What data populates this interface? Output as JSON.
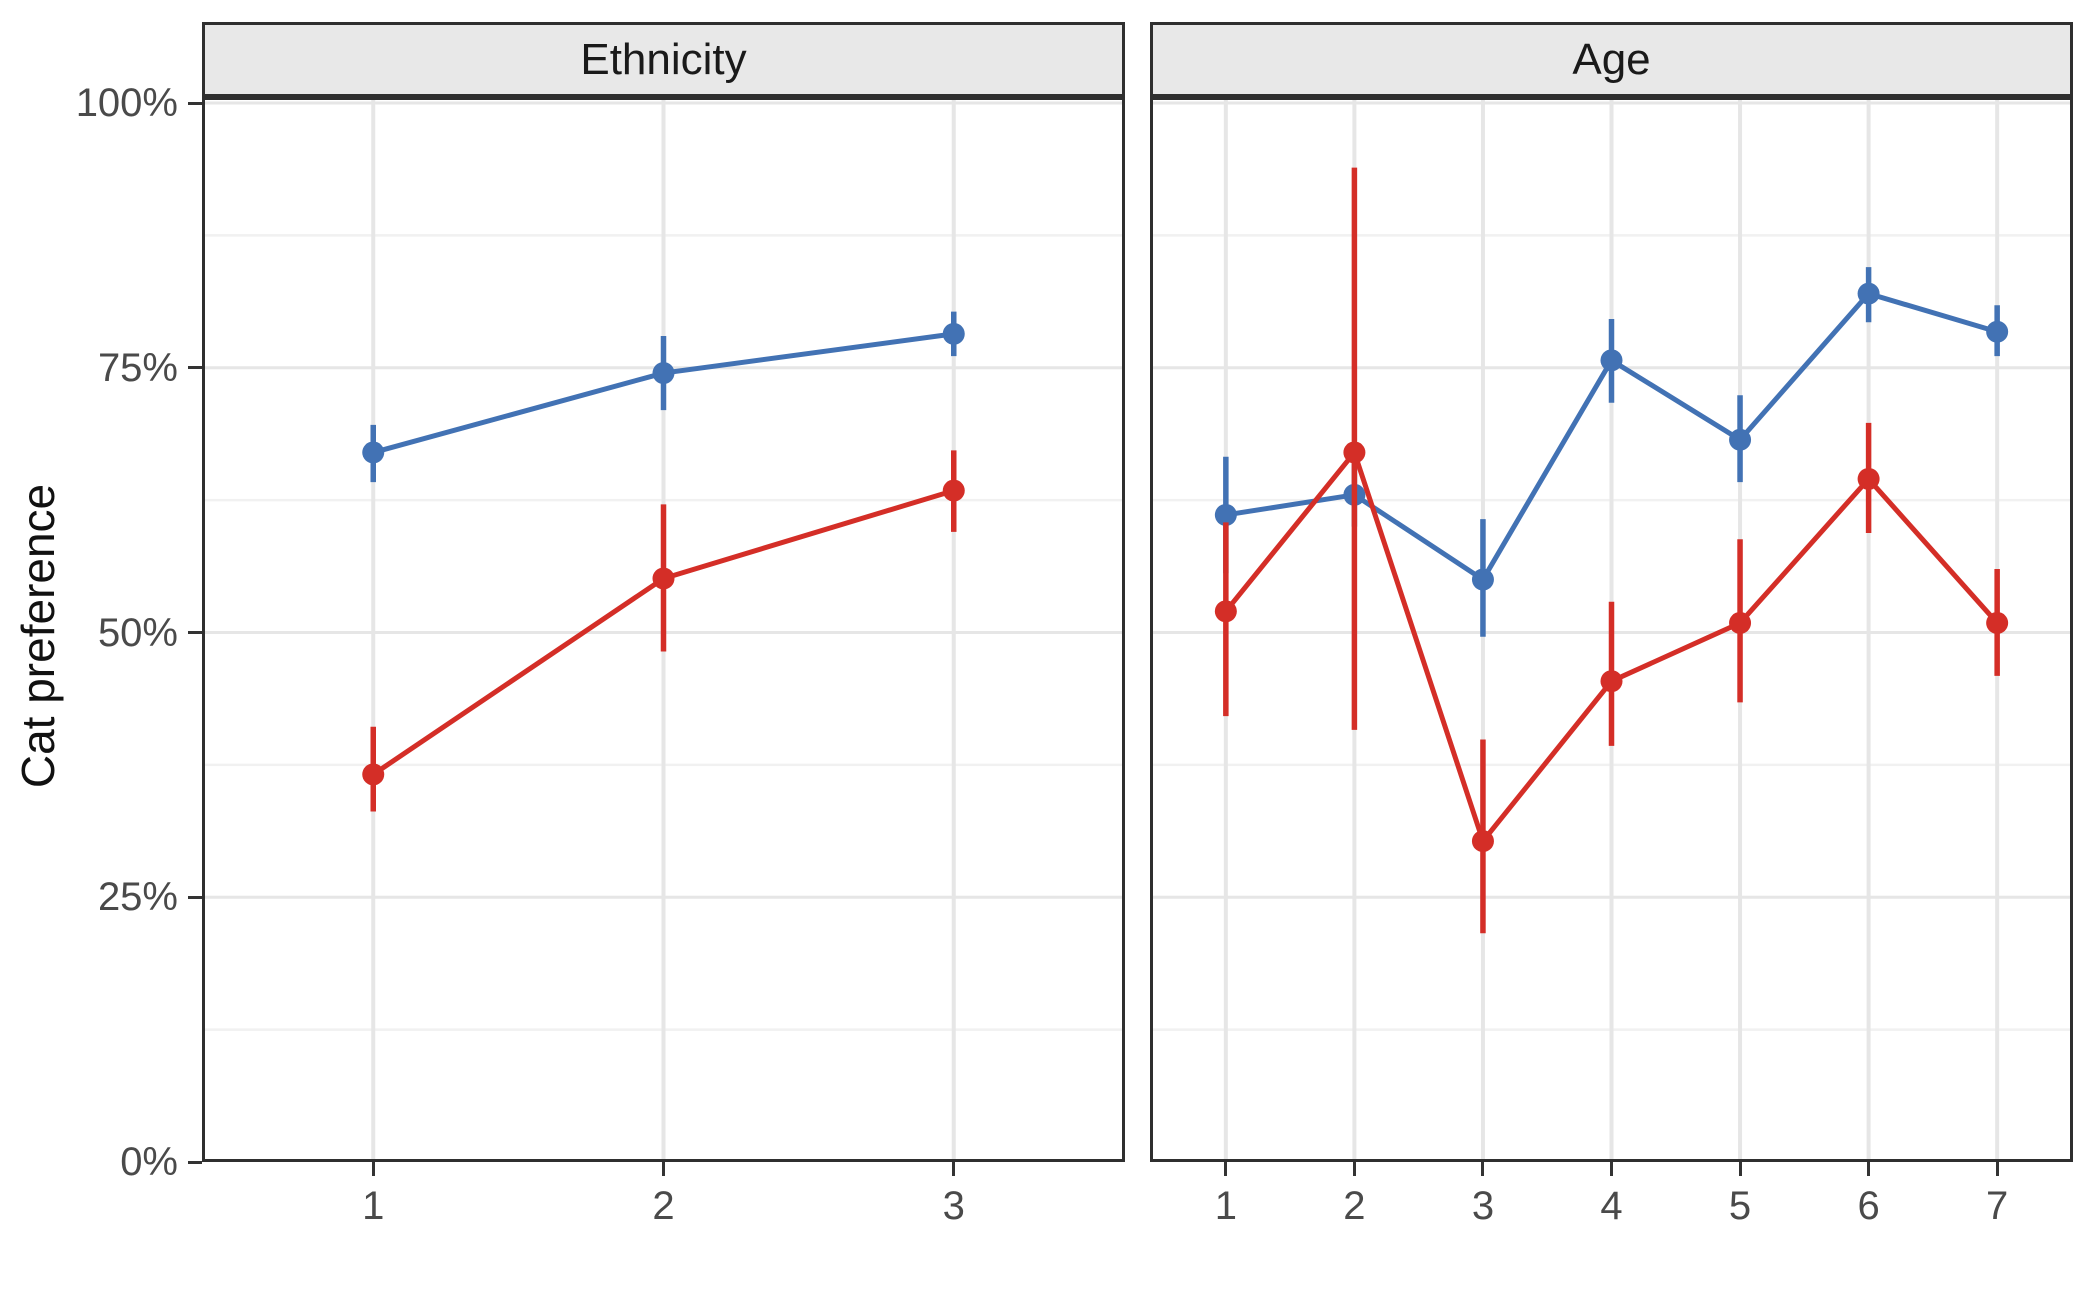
{
  "figure": {
    "ylabel": "Cat preference",
    "colors": {
      "blue_series": "#4272b4",
      "red_series": "#d42e27",
      "panel_border": "#2f2f2f",
      "strip_bg": "#e8e8e8",
      "grid_major": "#e6e6e6",
      "grid_minor": "#f1f1f1",
      "tick_text": "#4a4a4a"
    }
  },
  "y_axis": {
    "values": [
      0,
      25,
      50,
      75,
      100
    ],
    "labels": [
      "0%",
      "25%",
      "50%",
      "75%",
      "100%"
    ],
    "minor_values": [
      12.5,
      37.5,
      62.5,
      87.5
    ],
    "range": [
      0,
      100
    ]
  },
  "chart_data": [
    {
      "type": "line",
      "title": "Ethnicity",
      "x": [
        1,
        2,
        3
      ],
      "x_labels": [
        "1",
        "2",
        "3"
      ],
      "ylabel": "Cat preference",
      "ylim": [
        0,
        100
      ],
      "grid": true,
      "legend": "none",
      "series": [
        {
          "name": "blue-group",
          "color": "#4272b4",
          "values": [
            67.0,
            74.5,
            78.2
          ],
          "ci_low": [
            64.2,
            71.0,
            76.1
          ],
          "ci_high": [
            69.6,
            78.0,
            80.3
          ]
        },
        {
          "name": "red-group",
          "color": "#d42e27",
          "values": [
            36.6,
            55.1,
            63.4
          ],
          "ci_low": [
            33.1,
            48.2,
            59.5
          ],
          "ci_high": [
            41.1,
            62.1,
            67.2
          ]
        }
      ]
    },
    {
      "type": "line",
      "title": "Age",
      "x": [
        1,
        2,
        3,
        4,
        5,
        6,
        7
      ],
      "x_labels": [
        "1",
        "2",
        "3",
        "4",
        "5",
        "6",
        "7"
      ],
      "ylabel": "Cat preference",
      "ylim": [
        0,
        100
      ],
      "grid": true,
      "legend": "none",
      "series": [
        {
          "name": "blue-group",
          "color": "#4272b4",
          "values": [
            61.1,
            63.0,
            55.0,
            75.7,
            68.2,
            82.0,
            78.4
          ],
          "ci_low": [
            55.6,
            60.0,
            49.6,
            71.7,
            64.2,
            79.3,
            76.1
          ],
          "ci_high": [
            66.6,
            66.0,
            60.7,
            79.6,
            72.4,
            84.5,
            80.9
          ]
        },
        {
          "name": "red-group",
          "color": "#d42e27",
          "values": [
            52.0,
            67.0,
            30.3,
            45.4,
            50.9,
            64.5,
            50.9
          ],
          "ci_low": [
            42.1,
            40.8,
            21.6,
            39.3,
            43.4,
            59.4,
            45.9
          ],
          "ci_high": [
            60.4,
            93.9,
            39.9,
            52.9,
            58.8,
            69.8,
            56.0
          ]
        }
      ]
    }
  ]
}
